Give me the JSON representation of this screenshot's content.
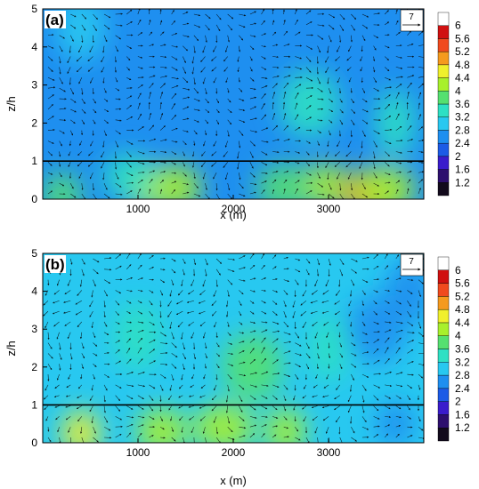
{
  "colorbar": {
    "levels": [
      1.2,
      1.6,
      2,
      2.4,
      2.8,
      3.2,
      3.6,
      4,
      4.4,
      4.8,
      5.2,
      5.6,
      6
    ],
    "labels": [
      "1.2",
      "1.6",
      "2",
      "2.4",
      "2.8",
      "3.2",
      "3.6",
      "4",
      "4.4",
      "4.8",
      "5.2",
      "5.6",
      "6"
    ],
    "colors": [
      "#120a1c",
      "#2d0f6e",
      "#3a1ccc",
      "#1c5be6",
      "#1e8ff0",
      "#28c8f0",
      "#2ee0c4",
      "#55e070",
      "#a8f02c",
      "#f0f02c",
      "#f59a1e",
      "#f04a1e",
      "#d01010",
      "#ffffff"
    ]
  },
  "chart_data": [
    {
      "type": "heatmap",
      "panel_label": "(a)",
      "xlabel": "x (m)",
      "ylabel": "z/h",
      "xlim": [
        0,
        4000
      ],
      "ylim": [
        0,
        5
      ],
      "xticks": [
        1000,
        2000,
        3000
      ],
      "xtick_labels": [
        "1000",
        "2000",
        "3000"
      ],
      "yticks": [
        0,
        1,
        2,
        3,
        4,
        5
      ],
      "ytick_labels": [
        "0",
        "1",
        "2",
        "3",
        "4",
        "5"
      ],
      "reference_line_z": 1,
      "reference_vector_label": "7",
      "background_level": 2.6,
      "hotspots": [
        {
          "x": 1070,
          "z": 0.35,
          "level": 4.2
        },
        {
          "x": 1400,
          "z": 0.3,
          "level": 4.1
        },
        {
          "x": 2550,
          "z": 0.3,
          "level": 3.9
        },
        {
          "x": 2980,
          "z": 0.35,
          "level": 4.0
        },
        {
          "x": 3400,
          "z": 0.15,
          "level": 5.0
        },
        {
          "x": 3600,
          "z": 0.25,
          "level": 4.0
        },
        {
          "x": 200,
          "z": 0.1,
          "level": 3.8
        },
        {
          "x": 900,
          "z": 0.6,
          "level": 3.3
        },
        {
          "x": 2800,
          "z": 2.5,
          "level": 3.2
        },
        {
          "x": 3700,
          "z": 2.0,
          "level": 3.3
        },
        {
          "x": 400,
          "z": 4.5,
          "level": 2.9
        }
      ]
    },
    {
      "type": "heatmap",
      "panel_label": "(b)",
      "xlabel": "x (m)",
      "ylabel": "z/h",
      "xlim": [
        0,
        4000
      ],
      "ylim": [
        0,
        5
      ],
      "xticks": [
        1000,
        2000,
        3000
      ],
      "xtick_labels": [
        "1000",
        "2000",
        "3000"
      ],
      "yticks": [
        0,
        1,
        2,
        3,
        4,
        5
      ],
      "ytick_labels": [
        "0",
        "1",
        "2",
        "3",
        "4",
        "5"
      ],
      "reference_line_z": 1,
      "reference_vector_label": "7",
      "background_level": 3.1,
      "hotspots": [
        {
          "x": 400,
          "z": 0.25,
          "level": 4.4
        },
        {
          "x": 1250,
          "z": 0.3,
          "level": 4.0
        },
        {
          "x": 1900,
          "z": 0.4,
          "level": 4.2
        },
        {
          "x": 2550,
          "z": 0.3,
          "level": 4.1
        },
        {
          "x": 1000,
          "z": 2.8,
          "level": 3.5
        },
        {
          "x": 2200,
          "z": 2.0,
          "level": 3.6
        },
        {
          "x": 3000,
          "z": 2.5,
          "level": 3.4
        },
        {
          "x": 3850,
          "z": 4.0,
          "level": 2.5
        },
        {
          "x": 3500,
          "z": 3.0,
          "level": 2.6
        },
        {
          "x": 3700,
          "z": 0.5,
          "level": 2.4
        }
      ]
    }
  ]
}
